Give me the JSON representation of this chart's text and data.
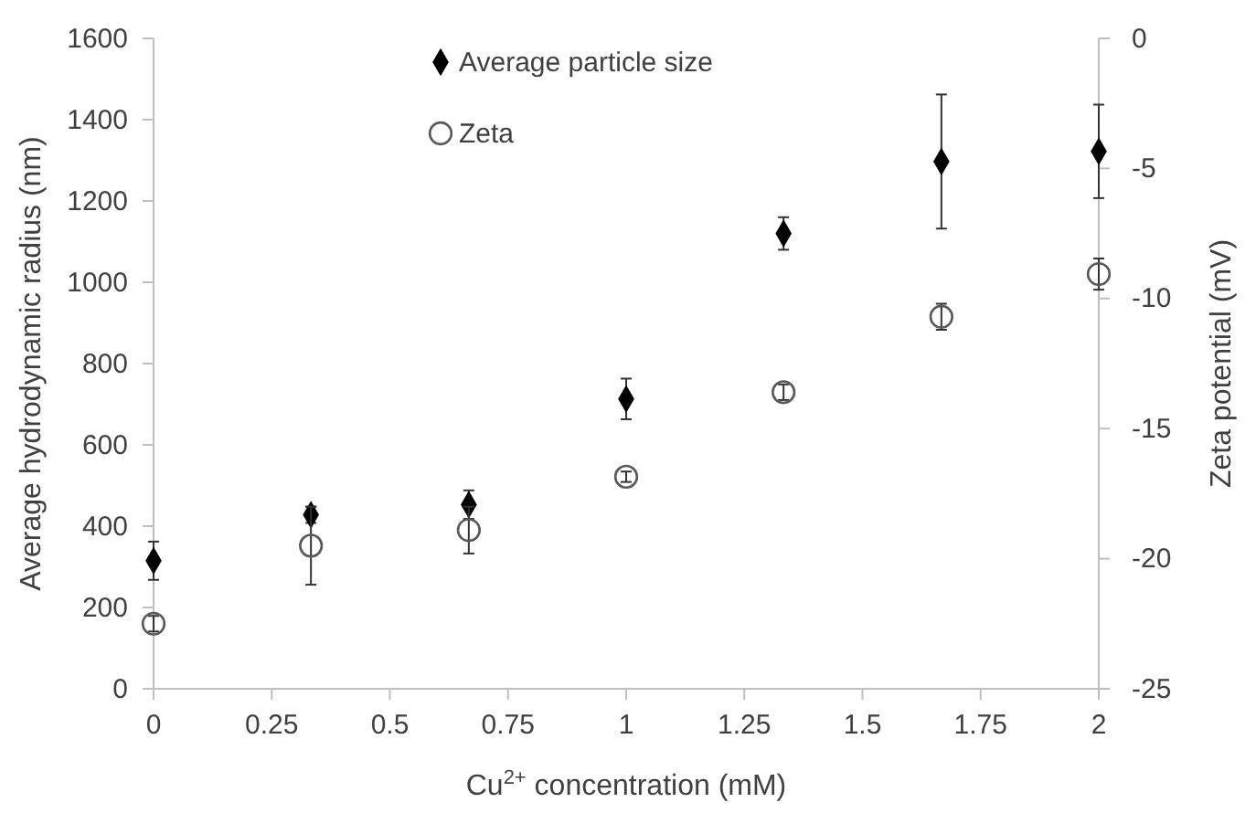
{
  "chart_data": {
    "type": "scatter",
    "xlabel": "Cu$^{2+}$ concentration (mM)",
    "ylabel": "Average hydrodynamic radius (nm)",
    "y2label": "Zeta potential (mV)",
    "x": [
      0,
      0.333,
      0.667,
      1,
      1.333,
      1.667,
      2
    ],
    "xlim": [
      0,
      2
    ],
    "xticks": [
      0,
      0.25,
      0.5,
      0.75,
      1,
      1.25,
      1.5,
      1.75,
      2
    ],
    "ylim": [
      0,
      1600
    ],
    "yticks": [
      0,
      200,
      400,
      600,
      800,
      1000,
      1200,
      1400,
      1600
    ],
    "y2lim": [
      -25,
      0
    ],
    "y2ticks": [
      -25,
      -20,
      -15,
      -10,
      -5,
      0
    ],
    "legend": "top",
    "grid": false,
    "series": [
      {
        "name": "Average particle size",
        "color": "#000000",
        "marker": "diamond",
        "values": [
          315,
          428,
          453,
          713,
          1120,
          1297,
          1322
        ],
        "errors": [
          47,
          20,
          35,
          50,
          40,
          165,
          115
        ]
      },
      {
        "name": "Zeta",
        "color": "#595959",
        "marker": "circle",
        "axis": "y2",
        "values": [
          -22.5,
          -19.5,
          -18.9,
          -16.85,
          -13.6,
          -10.7,
          -9.06
        ],
        "errors": [
          0.3,
          1.5,
          0.9,
          0.2,
          0.3,
          0.5,
          0.6
        ]
      }
    ]
  }
}
